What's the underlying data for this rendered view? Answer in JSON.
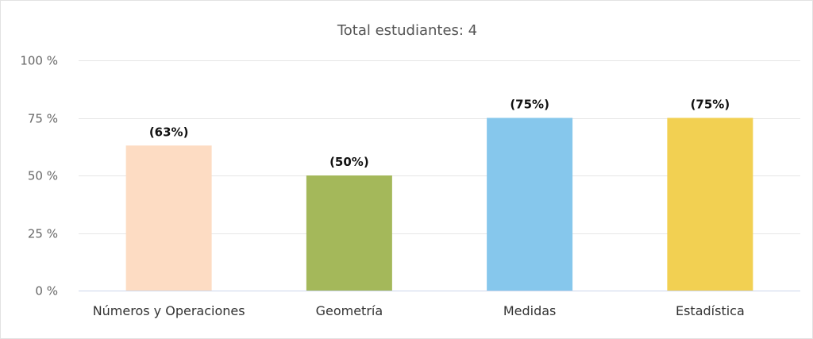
{
  "chart_data": {
    "type": "bar",
    "title": "Total estudiantes: 4",
    "xlabel": "",
    "ylabel": "",
    "categories": [
      "Números y Operaciones",
      "Geometría",
      "Medidas",
      "Estadística"
    ],
    "values": [
      63,
      50,
      75,
      75
    ],
    "data_labels": [
      "(63%)",
      "(50%)",
      "(75%)",
      "(75%)"
    ],
    "colors": [
      "#FDDCC3",
      "#A4B85A",
      "#86C7EC",
      "#F2D052"
    ],
    "ylim": [
      0,
      100
    ],
    "yticks": [
      0,
      25,
      50,
      75,
      100
    ],
    "ytick_labels": [
      "0 %",
      "25 %",
      "50 %",
      "75 %",
      "100 %"
    ],
    "grid": true,
    "legend": "none"
  }
}
